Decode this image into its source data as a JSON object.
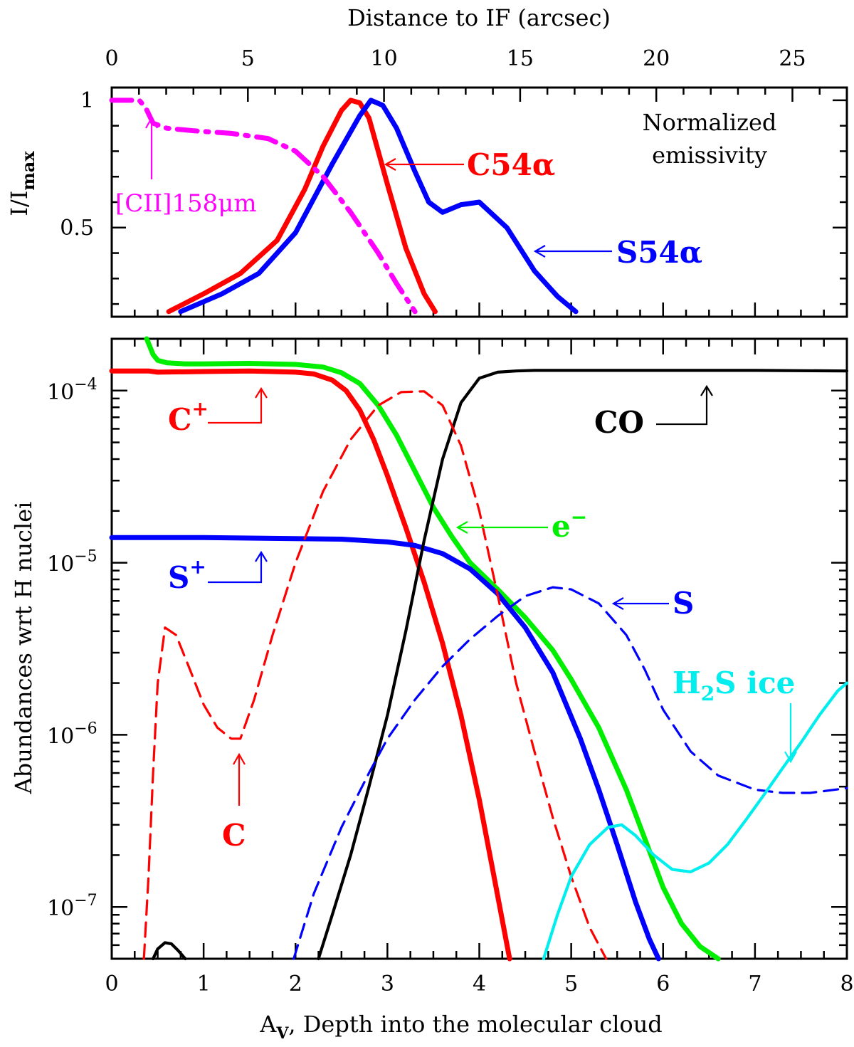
{
  "chart_data": [
    {
      "type": "line",
      "panel": "top",
      "ylabel": "I/I",
      "ylabel_sub": "max",
      "top_xlabel": "Distance to IF  (arcsec)",
      "top_xticks": [
        "0",
        "5",
        "10",
        "15",
        "20",
        "25"
      ],
      "top_xtick_values": [
        0,
        5,
        10,
        15,
        20,
        25
      ],
      "top_xlim": [
        0,
        27
      ],
      "xlim": [
        0,
        8
      ],
      "ylim": [
        0.15,
        1.05
      ],
      "ytick_labels": [
        "1",
        "0.5"
      ],
      "ytick_values": [
        1,
        0.5
      ],
      "note": [
        "Normalized",
        "emissivity"
      ],
      "series": [
        {
          "name": "C54α",
          "label": "C54α",
          "color": "#ff0000",
          "style": "solid",
          "x": [
            0.62,
            1.0,
            1.4,
            1.8,
            2.1,
            2.3,
            2.5,
            2.6,
            2.7,
            2.8,
            3.0,
            3.2,
            3.4,
            3.52
          ],
          "y": [
            0.17,
            0.24,
            0.32,
            0.45,
            0.65,
            0.82,
            0.96,
            1.0,
            0.99,
            0.93,
            0.67,
            0.42,
            0.24,
            0.17
          ]
        },
        {
          "name": "S54α",
          "label": "S54α",
          "color": "#0000ff",
          "style": "solid",
          "x": [
            0.75,
            1.2,
            1.6,
            2.0,
            2.4,
            2.7,
            2.82,
            2.95,
            3.1,
            3.3,
            3.45,
            3.6,
            3.8,
            4.0,
            4.3,
            4.6,
            4.85,
            5.05
          ],
          "y": [
            0.17,
            0.24,
            0.32,
            0.48,
            0.75,
            0.94,
            1.0,
            0.98,
            0.89,
            0.72,
            0.6,
            0.56,
            0.59,
            0.6,
            0.5,
            0.33,
            0.23,
            0.17
          ]
        },
        {
          "name": "[CII]158μm",
          "label": "[CII]158μm",
          "color": "#ff00ff",
          "style": "dashdot",
          "x": [
            0.0,
            0.2,
            0.3,
            0.37,
            0.45,
            0.6,
            0.9,
            1.3,
            1.7,
            2.0,
            2.3,
            2.6,
            2.9,
            3.1,
            3.3
          ],
          "y": [
            1.0,
            1.0,
            1.0,
            0.97,
            0.91,
            0.89,
            0.88,
            0.87,
            0.85,
            0.8,
            0.7,
            0.56,
            0.4,
            0.28,
            0.17
          ]
        }
      ]
    },
    {
      "type": "line",
      "panel": "bottom",
      "xlabel": "A",
      "xlabel_sub": "V",
      "xlabel_rest": ", Depth into the molecular cloud",
      "ylabel": "Abundances wrt H nuclei",
      "xlim": [
        0,
        8
      ],
      "ylim": [
        5e-08,
        0.0002
      ],
      "xtick_labels": [
        "0",
        "1",
        "2",
        "3",
        "4",
        "5",
        "6",
        "7",
        "8"
      ],
      "xtick_values": [
        0,
        1,
        2,
        3,
        4,
        5,
        6,
        7,
        8
      ],
      "ytick_base": "10",
      "ytick_exponents": [
        "−4",
        "−5",
        "−6",
        "−7"
      ],
      "ytick_values": [
        0.0001,
        1e-05,
        1e-06,
        1e-07
      ],
      "series": [
        {
          "name": "C+",
          "color": "#ff0000",
          "style": "solid",
          "weight": "thick",
          "x": [
            0.0,
            0.4,
            0.5,
            1.0,
            1.5,
            2.0,
            2.2,
            2.4,
            2.55,
            2.7,
            2.85,
            3.0,
            3.2,
            3.4,
            3.6,
            3.8,
            4.0,
            4.15,
            4.33
          ],
          "y": [
            0.00013,
            0.00013,
            0.000128,
            0.000129,
            0.00013,
            0.000128,
            0.000125,
            0.000115,
            0.0001,
            7.7e-05,
            5.2e-05,
            3.2e-05,
            1.6e-05,
            7.7e-06,
            3.4e-06,
            1.3e-06,
            4.2e-07,
            1.6e-07,
            5e-08
          ]
        },
        {
          "name": "e−",
          "color": "#00ee00",
          "style": "solid",
          "weight": "thick",
          "x": [
            0.38,
            0.45,
            0.5,
            0.6,
            0.8,
            1.0,
            1.5,
            2.0,
            2.3,
            2.5,
            2.7,
            2.9,
            3.1,
            3.3,
            3.5,
            3.7,
            3.9,
            4.2,
            4.5,
            4.8,
            5.0,
            5.3,
            5.6,
            5.8,
            6.0,
            6.2,
            6.4,
            6.6
          ],
          "y": [
            0.0002,
            0.000162,
            0.00015,
            0.000145,
            0.000143,
            0.000143,
            0.000144,
            0.000142,
            0.000137,
            0.000127,
            0.00011,
            8.2e-05,
            5.5e-05,
            3.4e-05,
            2.1e-05,
            1.42e-05,
            1e-05,
            7e-06,
            4.8e-06,
            3.1e-06,
            2.1e-06,
            1.1e-06,
            4.8e-07,
            2.5e-07,
            1.3e-07,
            8e-08,
            5.9e-08,
            5e-08
          ]
        },
        {
          "name": "S+",
          "color": "#0000ff",
          "style": "solid",
          "weight": "thick",
          "x": [
            0.0,
            1.0,
            2.0,
            2.5,
            3.0,
            3.3,
            3.6,
            3.9,
            4.2,
            4.5,
            4.8,
            5.1,
            5.3,
            5.5,
            5.7,
            5.85,
            5.95
          ],
          "y": [
            1.4e-05,
            1.4e-05,
            1.38e-05,
            1.37e-05,
            1.32e-05,
            1.26e-05,
            1.13e-05,
            9.2e-06,
            6.6e-06,
            4.2e-06,
            2.3e-06,
            9.5e-07,
            4.8e-07,
            2.3e-07,
            1.07e-07,
            6.5e-08,
            5e-08
          ]
        },
        {
          "name": "CO",
          "color": "#000000",
          "style": "solid",
          "weight": "medium",
          "x": [
            2.25,
            2.4,
            2.6,
            2.8,
            3.0,
            3.2,
            3.4,
            3.6,
            3.8,
            4.0,
            4.2,
            4.4,
            4.6,
            5.0,
            6.0,
            7.0,
            8.0
          ],
          "y": [
            5e-08,
            9e-08,
            2e-07,
            5e-07,
            1.3e-06,
            4e-06,
            1.35e-05,
            4e-05,
            8.5e-05,
            0.000118,
            0.000128,
            0.00013,
            0.000131,
            0.000131,
            0.000131,
            0.000131,
            0.00013
          ]
        },
        {
          "name": "CO-small",
          "color": "#000000",
          "style": "solid",
          "weight": "medium",
          "x": [
            0.45,
            0.5,
            0.58,
            0.65,
            0.72,
            0.8
          ],
          "y": [
            5e-08,
            5.7e-08,
            6.2e-08,
            6.1e-08,
            5.6e-08,
            5e-08
          ]
        },
        {
          "name": "C",
          "color": "#ff0000",
          "style": "dashed",
          "weight": "thin",
          "x": [
            0.35,
            0.4,
            0.45,
            0.5,
            0.58,
            0.7,
            0.85,
            1.0,
            1.15,
            1.3,
            1.4,
            1.55,
            1.75,
            2.0,
            2.3,
            2.6,
            2.9,
            3.15,
            3.4,
            3.6,
            3.8,
            4.0,
            4.2,
            4.4,
            4.6,
            4.8,
            5.0,
            5.2,
            5.38
          ],
          "y": [
            5e-08,
            1.5e-07,
            6e-07,
            2e-06,
            4.2e-06,
            3.8e-06,
            2.4e-06,
            1.5e-06,
            1.1e-06,
            9.5e-07,
            9.5e-07,
            1.6e-06,
            3.8e-06,
            1e-05,
            2.6e-05,
            5.2e-05,
            8.2e-05,
            9.8e-05,
            9.9e-05,
            8.2e-05,
            4.8e-05,
            2e-05,
            6.5e-06,
            2e-06,
            8e-07,
            3.3e-07,
            1.5e-07,
            7.6e-08,
            5e-08
          ]
        },
        {
          "name": "S",
          "color": "#0000ff",
          "style": "dashed",
          "weight": "thin",
          "x": [
            1.98,
            2.2,
            2.5,
            2.8,
            3.0,
            3.3,
            3.6,
            3.9,
            4.2,
            4.5,
            4.8,
            5.0,
            5.3,
            5.6,
            5.8,
            6.0,
            6.3,
            6.6,
            7.0,
            7.3,
            7.6,
            8.0
          ],
          "y": [
            5e-08,
            1.2e-07,
            2.9e-07,
            6e-07,
            9.5e-07,
            1.6e-06,
            2.5e-06,
            3.6e-06,
            4.9e-06,
            6.4e-06,
            7.2e-06,
            7e-06,
            5.8e-06,
            3.8e-06,
            2.4e-06,
            1.4e-06,
            8e-07,
            5.8e-07,
            4.8e-07,
            4.6e-07,
            4.6e-07,
            4.9e-07
          ]
        },
        {
          "name": "H2S ice",
          "color": "#00eeee",
          "style": "solid",
          "weight": "medium",
          "x": [
            4.7,
            4.85,
            5.0,
            5.2,
            5.4,
            5.55,
            5.7,
            5.9,
            6.1,
            6.3,
            6.5,
            6.7,
            6.9,
            7.1,
            7.3,
            7.5,
            7.7,
            7.9,
            8.0
          ],
          "y": [
            5e-08,
            9e-08,
            1.5e-07,
            2.3e-07,
            2.9e-07,
            3e-07,
            2.6e-07,
            2e-07,
            1.65e-07,
            1.6e-07,
            1.8e-07,
            2.3e-07,
            3.2e-07,
            4.5e-07,
            6.4e-07,
            9e-07,
            1.3e-06,
            1.8e-06,
            2e-06
          ]
        }
      ],
      "labels": {
        "cplus": "C",
        "cplus_sup": "+",
        "splus": "S",
        "splus_sup": "+",
        "co": "CO",
        "eminus": "e",
        "eminus_sup": "−",
        "s": "S",
        "c": "C",
        "h2s_a": "H",
        "h2s_sub": "2",
        "h2s_b": "S ice"
      }
    }
  ]
}
